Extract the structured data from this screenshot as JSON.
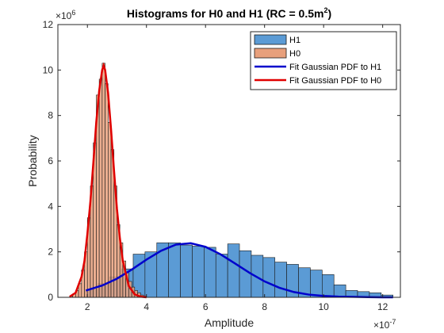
{
  "chart_data": {
    "type": "bar",
    "title": {
      "main": "Histograms for H0 and H1 (RC = 0.5m",
      "superscript": "2",
      "close": ")"
    },
    "xlabel": "Amplitude",
    "ylabel": "Probability",
    "x_exponent": {
      "base": "×10",
      "power": "-7"
    },
    "y_exponent": {
      "base": "×10",
      "power": "6"
    },
    "xlim": [
      1.0,
      12.6
    ],
    "ylim": [
      0,
      12
    ],
    "xticks": [
      2,
      4,
      6,
      8,
      10,
      12
    ],
    "yticks": [
      0,
      2,
      4,
      6,
      8,
      10,
      12
    ],
    "grid": false,
    "legend_position": "top-right",
    "legend": [
      {
        "label": "H1",
        "kind": "patch",
        "color": "#5b9bd5"
      },
      {
        "label": "H0",
        "kind": "patch",
        "color": "#e8a07c"
      },
      {
        "label": "Fit Gaussian PDF to H1",
        "kind": "line",
        "color": "#0000cc"
      },
      {
        "label": "Fit Gaussian PDF to H0",
        "kind": "line",
        "color": "#e00000"
      }
    ],
    "series": [
      {
        "name": "H1",
        "kind": "histogram",
        "color": "#5b9bd5",
        "edges": [
          1.95,
          2.35,
          2.75,
          3.15,
          3.55,
          3.95,
          4.35,
          4.75,
          5.15,
          5.55,
          5.95,
          6.35,
          6.75,
          7.15,
          7.55,
          7.95,
          8.35,
          8.75,
          9.15,
          9.55,
          9.95,
          10.35,
          10.75,
          11.15,
          11.55,
          11.95,
          12.35
        ],
        "values": [
          0.35,
          0.6,
          0.9,
          1.25,
          1.9,
          2.0,
          2.4,
          2.4,
          2.3,
          2.25,
          2.2,
          1.9,
          2.35,
          2.05,
          1.85,
          1.75,
          1.55,
          1.45,
          1.3,
          1.2,
          1.0,
          0.55,
          0.3,
          0.25,
          0.2,
          0.1
        ]
      },
      {
        "name": "H0",
        "kind": "histogram",
        "color": "#e8a07c",
        "edges": [
          1.4,
          1.5,
          1.6,
          1.7,
          1.8,
          1.9,
          2.0,
          2.1,
          2.2,
          2.3,
          2.4,
          2.5,
          2.6,
          2.7,
          2.8,
          2.9,
          3.0,
          3.1,
          3.2,
          3.3,
          3.4,
          3.5,
          3.6,
          3.7,
          3.8,
          3.9,
          4.0
        ],
        "values": [
          0.05,
          0.15,
          0.3,
          0.6,
          1.2,
          2.0,
          3.5,
          4.9,
          6.8,
          8.9,
          9.6,
          10.3,
          9.4,
          7.7,
          6.5,
          4.9,
          3.2,
          2.4,
          1.6,
          1.1,
          0.7,
          0.45,
          0.3,
          0.2,
          0.1,
          0.05
        ]
      },
      {
        "name": "Fit Gaussian PDF to H1",
        "kind": "line",
        "color": "#0000cc",
        "x": [
          1.95,
          2.5,
          3.0,
          3.5,
          4.0,
          4.5,
          5.0,
          5.5,
          6.0,
          6.5,
          7.0,
          7.5,
          8.0,
          8.5,
          9.0,
          9.5,
          10.0,
          10.5,
          11.0,
          11.5,
          12.0,
          12.35
        ],
        "y": [
          0.3,
          0.52,
          0.82,
          1.22,
          1.66,
          2.05,
          2.32,
          2.38,
          2.22,
          1.9,
          1.49,
          1.07,
          0.7,
          0.42,
          0.23,
          0.12,
          0.06,
          0.03,
          0.02,
          0.01,
          0.0,
          0.0
        ]
      },
      {
        "name": "Fit Gaussian PDF to H0",
        "kind": "line",
        "color": "#e00000",
        "x": [
          1.4,
          1.6,
          1.8,
          1.9,
          2.0,
          2.1,
          2.2,
          2.3,
          2.4,
          2.5,
          2.55,
          2.6,
          2.7,
          2.8,
          2.9,
          3.0,
          3.1,
          3.2,
          3.4,
          3.6,
          3.8,
          4.0
        ],
        "y": [
          0.03,
          0.2,
          0.9,
          1.6,
          2.8,
          4.2,
          5.9,
          7.7,
          9.1,
          10.0,
          10.2,
          10.0,
          9.0,
          7.4,
          5.6,
          3.9,
          2.6,
          1.6,
          0.5,
          0.13,
          0.03,
          0.0
        ]
      }
    ]
  }
}
